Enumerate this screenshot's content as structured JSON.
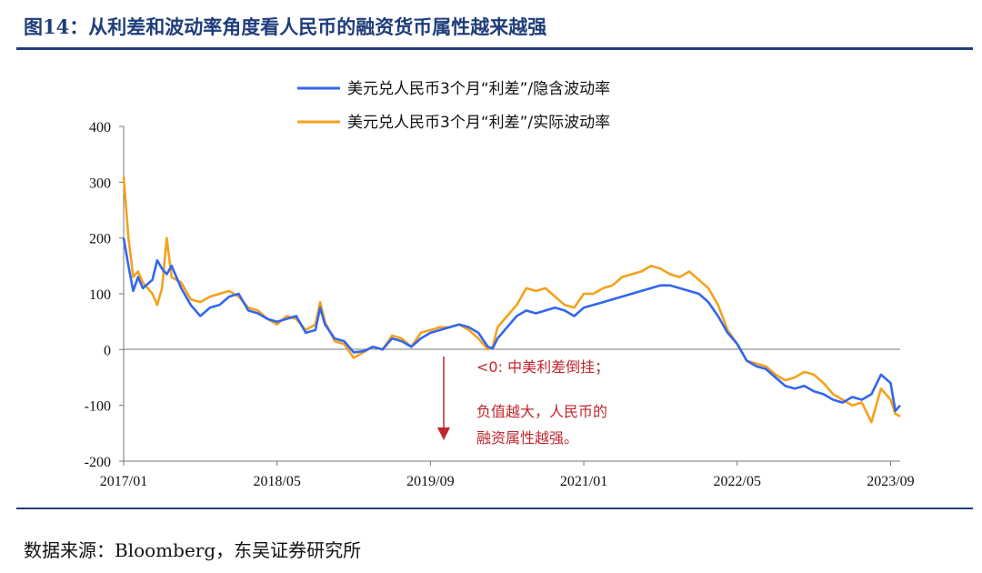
{
  "title": "图14：从利差和波动率角度看人民币的融资货币属性越来越强",
  "source": "数据来源：Bloomberg，东吴证券研究所",
  "colors": {
    "implied": "#3366ee",
    "realized": "#f5a11c",
    "annotation": "#c0272d",
    "brand": "#1f3d7a"
  },
  "annotations": {
    "line1": "<0: 中美利差倒挂；",
    "line2": "负值越大，人民币的",
    "line3": "融资属性越强。"
  },
  "chart_data": {
    "type": "line",
    "ylim": [
      -200,
      400
    ],
    "yticks": [
      400,
      300,
      200,
      100,
      0,
      -100,
      -200
    ],
    "xticks": [
      {
        "label": "2017/01",
        "t": 0
      },
      {
        "label": "2018/05",
        "t": 16
      },
      {
        "label": "2019/09",
        "t": 32
      },
      {
        "label": "2021/01",
        "t": 48
      },
      {
        "label": "2022/05",
        "t": 64
      },
      {
        "label": "2023/09",
        "t": 80
      }
    ],
    "xlim": [
      0,
      81
    ],
    "legend_position": "top-center",
    "series": [
      {
        "name": "美元兑人民币3个月“利差”/隐含波动率",
        "color": "#3366ee",
        "points": [
          [
            0,
            200
          ],
          [
            0.5,
            150
          ],
          [
            1,
            105
          ],
          [
            1.5,
            130
          ],
          [
            2,
            110
          ],
          [
            3,
            125
          ],
          [
            3.5,
            160
          ],
          [
            4,
            145
          ],
          [
            4.5,
            135
          ],
          [
            5,
            150
          ],
          [
            6,
            110
          ],
          [
            7,
            80
          ],
          [
            8,
            60
          ],
          [
            9,
            75
          ],
          [
            10,
            80
          ],
          [
            11,
            95
          ],
          [
            12,
            100
          ],
          [
            13,
            70
          ],
          [
            14,
            65
          ],
          [
            15,
            55
          ],
          [
            16,
            50
          ],
          [
            17,
            55
          ],
          [
            18,
            60
          ],
          [
            19,
            30
          ],
          [
            20,
            35
          ],
          [
            20.5,
            75
          ],
          [
            21,
            45
          ],
          [
            22,
            20
          ],
          [
            23,
            15
          ],
          [
            24,
            -5
          ],
          [
            25,
            -3
          ],
          [
            26,
            5
          ],
          [
            27,
            0
          ],
          [
            28,
            20
          ],
          [
            29,
            15
          ],
          [
            30,
            5
          ],
          [
            31,
            20
          ],
          [
            32,
            30
          ],
          [
            33,
            35
          ],
          [
            34,
            40
          ],
          [
            35,
            45
          ],
          [
            36,
            40
          ],
          [
            37,
            30
          ],
          [
            38,
            5
          ],
          [
            38.5,
            2
          ],
          [
            39,
            20
          ],
          [
            40,
            40
          ],
          [
            41,
            60
          ],
          [
            42,
            70
          ],
          [
            43,
            65
          ],
          [
            44,
            70
          ],
          [
            45,
            75
          ],
          [
            46,
            70
          ],
          [
            47,
            60
          ],
          [
            48,
            75
          ],
          [
            49,
            80
          ],
          [
            50,
            85
          ],
          [
            51,
            90
          ],
          [
            52,
            95
          ],
          [
            53,
            100
          ],
          [
            54,
            105
          ],
          [
            55,
            110
          ],
          [
            56,
            115
          ],
          [
            57,
            115
          ],
          [
            58,
            110
          ],
          [
            59,
            105
          ],
          [
            60,
            100
          ],
          [
            61,
            85
          ],
          [
            62,
            60
          ],
          [
            63,
            30
          ],
          [
            64,
            10
          ],
          [
            65,
            -20
          ],
          [
            66,
            -30
          ],
          [
            67,
            -35
          ],
          [
            68,
            -50
          ],
          [
            69,
            -65
          ],
          [
            70,
            -70
          ],
          [
            71,
            -65
          ],
          [
            72,
            -75
          ],
          [
            73,
            -80
          ],
          [
            74,
            -90
          ],
          [
            75,
            -95
          ],
          [
            76,
            -85
          ],
          [
            77,
            -90
          ],
          [
            78,
            -80
          ],
          [
            79,
            -45
          ],
          [
            80,
            -60
          ],
          [
            80.5,
            -110
          ],
          [
            81,
            -100
          ]
        ]
      },
      {
        "name": "美元兑人民币3个月“利差”/实际波动率",
        "color": "#f5a11c",
        "points": [
          [
            0,
            310
          ],
          [
            0.5,
            200
          ],
          [
            1,
            130
          ],
          [
            1.5,
            140
          ],
          [
            2,
            120
          ],
          [
            3,
            100
          ],
          [
            3.5,
            80
          ],
          [
            4,
            110
          ],
          [
            4.5,
            200
          ],
          [
            5,
            130
          ],
          [
            6,
            120
          ],
          [
            7,
            90
          ],
          [
            8,
            85
          ],
          [
            9,
            95
          ],
          [
            10,
            100
          ],
          [
            11,
            105
          ],
          [
            12,
            95
          ],
          [
            13,
            75
          ],
          [
            14,
            70
          ],
          [
            15,
            55
          ],
          [
            16,
            45
          ],
          [
            17,
            60
          ],
          [
            18,
            55
          ],
          [
            19,
            35
          ],
          [
            20,
            45
          ],
          [
            20.5,
            85
          ],
          [
            21,
            50
          ],
          [
            22,
            15
          ],
          [
            23,
            10
          ],
          [
            24,
            -15
          ],
          [
            25,
            -5
          ],
          [
            26,
            5
          ],
          [
            27,
            0
          ],
          [
            28,
            25
          ],
          [
            29,
            20
          ],
          [
            30,
            5
          ],
          [
            31,
            30
          ],
          [
            32,
            35
          ],
          [
            33,
            40
          ],
          [
            34,
            40
          ],
          [
            35,
            45
          ],
          [
            36,
            35
          ],
          [
            37,
            20
          ],
          [
            38,
            0
          ],
          [
            38.5,
            5
          ],
          [
            39,
            40
          ],
          [
            40,
            60
          ],
          [
            41,
            80
          ],
          [
            42,
            110
          ],
          [
            43,
            105
          ],
          [
            44,
            110
          ],
          [
            45,
            95
          ],
          [
            46,
            80
          ],
          [
            47,
            75
          ],
          [
            48,
            100
          ],
          [
            49,
            100
          ],
          [
            50,
            110
          ],
          [
            51,
            115
          ],
          [
            52,
            130
          ],
          [
            53,
            135
          ],
          [
            54,
            140
          ],
          [
            55,
            150
          ],
          [
            56,
            145
          ],
          [
            57,
            135
          ],
          [
            58,
            130
          ],
          [
            59,
            140
          ],
          [
            60,
            125
          ],
          [
            61,
            110
          ],
          [
            62,
            80
          ],
          [
            63,
            35
          ],
          [
            64,
            10
          ],
          [
            65,
            -20
          ],
          [
            66,
            -25
          ],
          [
            67,
            -30
          ],
          [
            68,
            -45
          ],
          [
            69,
            -55
          ],
          [
            70,
            -50
          ],
          [
            71,
            -40
          ],
          [
            72,
            -45
          ],
          [
            73,
            -60
          ],
          [
            74,
            -80
          ],
          [
            75,
            -90
          ],
          [
            76,
            -100
          ],
          [
            77,
            -95
          ],
          [
            78,
            -130
          ],
          [
            79,
            -70
          ],
          [
            80,
            -90
          ],
          [
            80.5,
            -115
          ],
          [
            81,
            -120
          ]
        ]
      }
    ]
  }
}
